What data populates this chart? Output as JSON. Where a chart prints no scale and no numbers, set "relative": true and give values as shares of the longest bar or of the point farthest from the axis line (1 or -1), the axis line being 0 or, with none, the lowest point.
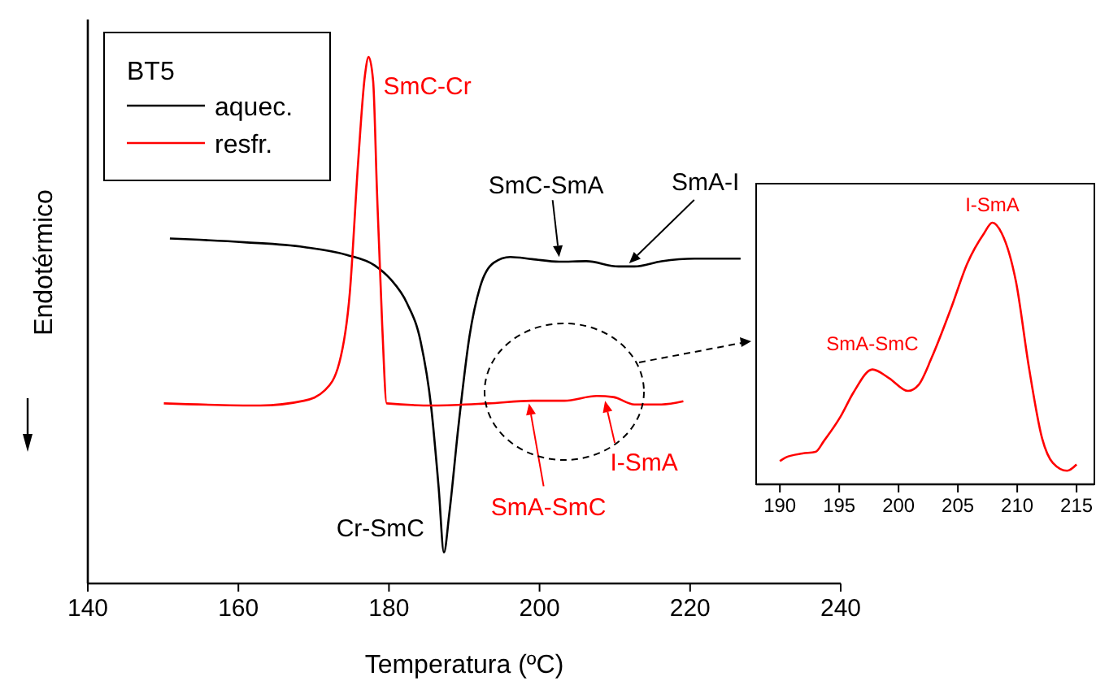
{
  "chart_data": [
    {
      "type": "line",
      "relative": true,
      "legend_title": "BT5",
      "legend": "top left",
      "xlabel": "Temperatura (ºC)",
      "ylabel": "Endotérmico",
      "xlim": [
        140,
        240
      ],
      "xticks": [
        140,
        160,
        180,
        200,
        220,
        240
      ],
      "tick_labels": "x",
      "marker": "none",
      "line_style": "solid",
      "series": [
        {
          "name": "aquec.",
          "color": "#000000",
          "x": [
            150.9,
            160.8,
            168.7,
            174.4,
            178.1,
            180.2,
            182.4,
            184.2,
            185.6,
            186.6,
            187.3,
            188.0,
            189.2,
            190.7,
            192.1,
            193.9,
            196.1,
            199.0,
            202.6,
            206.2,
            210.5,
            212.6,
            216.2,
            220.6,
            226.7
          ],
          "values": [
            0.655,
            0.648,
            0.639,
            0.624,
            0.604,
            0.578,
            0.532,
            0.46,
            0.336,
            0.182,
            0.059,
            0.131,
            0.295,
            0.47,
            0.563,
            0.609,
            0.62,
            0.616,
            0.611,
            0.612,
            0.602,
            0.602,
            0.612,
            0.617,
            0.617
          ]
        },
        {
          "name": "resfr.",
          "color": "#ff0000",
          "x": [
            150.1,
            162.9,
            168.7,
            171.5,
            173.4,
            174.8,
            175.9,
            176.8,
            177.3,
            177.9,
            178.4,
            179.1,
            179.7,
            186.0,
            193.2,
            199.0,
            203.3,
            207.6,
            209.8,
            212.6,
            216.2,
            219.1
          ],
          "values": [
            0.342,
            0.338,
            0.347,
            0.367,
            0.419,
            0.552,
            0.799,
            0.964,
            1.0,
            0.954,
            0.748,
            0.491,
            0.342,
            0.338,
            0.342,
            0.347,
            0.347,
            0.356,
            0.354,
            0.34,
            0.34,
            0.346
          ]
        }
      ],
      "annotations": [
        {
          "text": "SmC-Cr",
          "x": 177.3,
          "y": 1.0
        },
        {
          "text": "SmC-SmA",
          "x": 202.6,
          "y": 0.62
        },
        {
          "text": "SmA-I",
          "x": 211.9,
          "y": 0.608
        },
        {
          "text": "Cr-SmC",
          "x": 187.3,
          "y": 0.059
        },
        {
          "text": "I-SmA",
          "x": 208.7,
          "y": 0.347
        },
        {
          "text": "SmA-SmC",
          "x": 198.6,
          "y": 0.342
        }
      ]
    },
    {
      "type": "line",
      "relative": true,
      "xlim": [
        188,
        216.5
      ],
      "xticks": [
        190,
        195,
        200,
        205,
        210,
        215
      ],
      "tick_labels": "x",
      "marker": "none",
      "series": [
        {
          "color": "#ff0000",
          "x": [
            190,
            190.5,
            191.9,
            193.0,
            193.7,
            195.1,
            196.2,
            197.8,
            199.2,
            200.8,
            201.7,
            202.8,
            204.4,
            205.8,
            207.2,
            207.9,
            208.7,
            209.9,
            211.0,
            212.1,
            213.0,
            214.2,
            215
          ],
          "values": [
            0.089,
            0.103,
            0.118,
            0.124,
            0.165,
            0.258,
            0.351,
            0.439,
            0.406,
            0.357,
            0.381,
            0.485,
            0.67,
            0.845,
            0.959,
            1.0,
            0.959,
            0.773,
            0.443,
            0.175,
            0.082,
            0.052,
            0.076
          ]
        }
      ],
      "annotations": [
        {
          "text": "SmA-SmC",
          "x": 197.8,
          "y": 0.439
        },
        {
          "text": "I-SmA",
          "x": 207.9,
          "y": 1.0
        }
      ]
    }
  ]
}
